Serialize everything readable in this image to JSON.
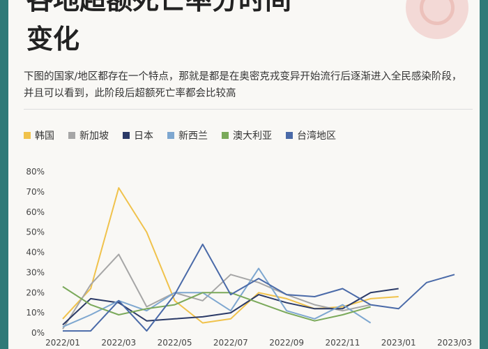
{
  "header": {
    "title_line1": "各地超额死亡率分时间",
    "title_line2": "变化",
    "description": "下图的国家/地区都存在一个特点，那就是都是在奥密克戎变异开始流行后逐渐进入全民感染阶段，并且可以看到，此阶段后超额死亡率都会比较高"
  },
  "chart_data": {
    "type": "line",
    "title": "各地超额死亡率分时间变化",
    "xlabel": "",
    "ylabel": "",
    "ylim": [
      0,
      80
    ],
    "y_ticks": [
      "0%",
      "10%",
      "20%",
      "30%",
      "40%",
      "50%",
      "60%",
      "70%",
      "80%"
    ],
    "x_ticks": [
      "2022/01",
      "2022/03",
      "2022/05",
      "2022/07",
      "2022/09",
      "2022/11",
      "2023/01",
      "2023/03"
    ],
    "x": [
      "2022/01",
      "2022/02",
      "2022/03",
      "2022/04",
      "2022/05",
      "2022/06",
      "2022/07",
      "2022/08",
      "2022/09",
      "2022/10",
      "2022/11",
      "2022/12",
      "2023/01",
      "2023/02",
      "2023/03"
    ],
    "legend_position": "top-left",
    "grid": false,
    "series": [
      {
        "name": "韩国",
        "color": "#f0c24b",
        "values": [
          7,
          22,
          72,
          50,
          16,
          5,
          7,
          20,
          17,
          12,
          13,
          17,
          18,
          null,
          null
        ]
      },
      {
        "name": "新加坡",
        "color": "#a6a6a6",
        "values": [
          2,
          24,
          39,
          13,
          20,
          16,
          29,
          25,
          19,
          14,
          11,
          14,
          null,
          null,
          null
        ]
      },
      {
        "name": "日本",
        "color": "#2b3a67",
        "values": [
          4,
          17,
          15,
          6,
          7,
          8,
          10,
          19,
          15,
          12,
          12,
          20,
          22,
          null,
          null
        ]
      },
      {
        "name": "新西兰",
        "color": "#7ea7d0",
        "values": [
          3,
          9,
          16,
          11,
          20,
          20,
          11,
          32,
          11,
          7,
          14,
          5,
          null,
          null,
          null
        ]
      },
      {
        "name": "澳大利亚",
        "color": "#7aa95a",
        "values": [
          23,
          14,
          9,
          12,
          14,
          20,
          20,
          15,
          10,
          6,
          9,
          13,
          null,
          null,
          null
        ]
      },
      {
        "name": "台湾地区",
        "color": "#4a6aa8",
        "values": [
          1,
          1,
          16,
          1,
          19,
          44,
          19,
          27,
          19,
          18,
          22,
          14,
          12,
          25,
          29
        ]
      }
    ]
  }
}
